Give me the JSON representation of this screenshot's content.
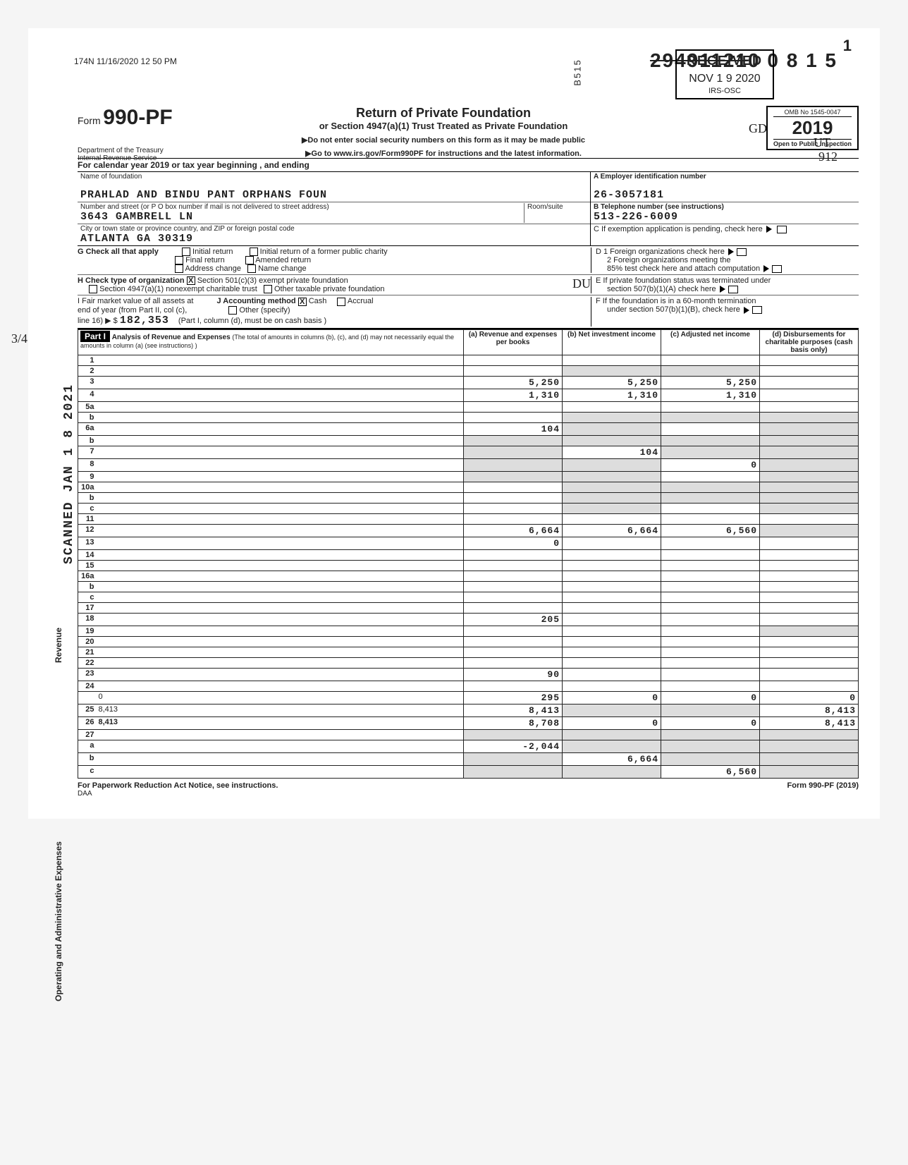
{
  "dln_strike": "29491121",
  "dln_main": "0 0 8 1 5",
  "pagenum": "1",
  "received_label": "RECEIVED",
  "received_date": "NOV 1 9 2020",
  "received_code": "B515",
  "vert_badge": "IRS-OSC",
  "header_timestamp": "174N 11/16/2020 12 50 PM",
  "form": {
    "word": "Form",
    "number": "990-PF"
  },
  "title": "Return of Private Foundation",
  "subtitle": "or Section 4947(a)(1) Trust Treated as Private Foundation",
  "note1": "▶Do not enter social security numbers on this form as it may be made public",
  "note2": "▶Go to  www.irs.gov/Form990PF  for instructions and the latest information.",
  "dept1": "Department of the Treasury",
  "dept2": "Internal Revenue Service",
  "omb": "OMB No 1545-0047",
  "year": "2019",
  "inspection": "Open to Public Inspection",
  "annot": {
    "gd": "GD",
    "ut": "UT",
    "num": "912",
    "du": "DU",
    "frac": "3/4"
  },
  "cal_year": "For calendar year 2019 or tax year beginning                         , and ending",
  "nameA": {
    "lbl": "Name of foundation",
    "val": "PRAHLAD AND BINDU PANT ORPHANS FOUN"
  },
  "eidA": {
    "lbl": "A   Employer identification number",
    "val": "26-3057181"
  },
  "street": {
    "lbl": "Number and street (or P O box number if mail is not delivered to street address)",
    "room_lbl": "Room/suite",
    "val": "3643 GAMBRELL LN"
  },
  "telB": {
    "lbl": "B   Telephone number (see instructions)",
    "val": "513-226-6009"
  },
  "city": {
    "lbl": "City or town state or province country, and ZIP or foreign postal code",
    "val": "ATLANTA                GA 30319"
  },
  "C": "C   If exemption application is pending, check here",
  "G": "G  Check all that apply",
  "G_opts": [
    "Initial return",
    "Final return",
    "Address change",
    "Initial return of a former public charity",
    "Amended return",
    "Name change"
  ],
  "D": "D   1  Foreign organizations check here",
  "D2a": "2  Foreign organizations meeting the",
  "D2b": "85% test check here and attach computation",
  "H": "H  Check type of organization",
  "H1": "Section 501(c)(3) exempt private foundation",
  "H2": "Section 4947(a)(1) nonexempt charitable trust",
  "H3": "Other taxable private foundation",
  "E": "E   If private foundation status was terminated under",
  "E2": "section 507(b)(1)(A) check here",
  "I": "I   Fair market value of all assets at",
  "I2": "end of year (from Part II, col (c),",
  "I3": "line 16) ▶ $",
  "I_val": "182,353",
  "J": "J   Accounting method",
  "J_cash": "Cash",
  "J_accr": "Accrual",
  "J_other": "Other (specify)",
  "J_note": "(Part I, column (d), must be on cash basis )",
  "F": "F   If the foundation is in a 60-month termination",
  "F2": "under section 507(b)(1)(B), check here",
  "part1": "Part I",
  "part1_title": "Analysis of Revenue and Expenses",
  "part1_sub": "(The total of amounts in columns (b), (c), and (d) may not necessarily equal the amounts in column (a) (see instructions) )",
  "col_a": "(a) Revenue and expenses per books",
  "col_b": "(b) Net investment income",
  "col_c": "(c) Adjusted net income",
  "col_d": "(d) Disbursements for charitable purposes (cash basis only)",
  "side_revenue": "Revenue",
  "side_expenses": "Operating and Administrative Expenses",
  "scanned": "SCANNED JAN 1 8 2021",
  "rows": [
    {
      "n": "1",
      "d": "",
      "a": "",
      "b": "",
      "c": ""
    },
    {
      "n": "2",
      "d": "",
      "a": "",
      "b": "",
      "c": "",
      "shade_b": true,
      "shade_c": true
    },
    {
      "n": "3",
      "d": "",
      "a": "5,250",
      "b": "5,250",
      "c": "5,250"
    },
    {
      "n": "4",
      "d": "",
      "a": "1,310",
      "b": "1,310",
      "c": "1,310"
    },
    {
      "n": "5a",
      "d": "",
      "a": "",
      "b": "",
      "c": ""
    },
    {
      "n": "b",
      "d": "",
      "a": "",
      "b": "",
      "c": "",
      "shade_b": true,
      "shade_c": true,
      "shade_d": true
    },
    {
      "n": "6a",
      "d": "",
      "a": "104",
      "b": "",
      "c": "",
      "shade_b": true,
      "shade_d": true
    },
    {
      "n": "b",
      "d": "",
      "a": "",
      "b": "",
      "c": "",
      "shade_a": true,
      "shade_b": true,
      "shade_c": true,
      "shade_d": true
    },
    {
      "n": "7",
      "d": "",
      "a": "",
      "b": "104",
      "c": "",
      "shade_a": true,
      "shade_c": true,
      "shade_d": true
    },
    {
      "n": "8",
      "d": "",
      "a": "",
      "b": "",
      "c": "0",
      "shade_a": true,
      "shade_b": true,
      "shade_d": true
    },
    {
      "n": "9",
      "d": "",
      "a": "",
      "b": "",
      "c": "",
      "shade_a": true,
      "shade_b": true,
      "shade_d": true
    },
    {
      "n": "10a",
      "d": "",
      "a": "",
      "b": "",
      "c": "",
      "shade_b": true,
      "shade_c": true,
      "shade_d": true
    },
    {
      "n": "b",
      "d": "",
      "a": "",
      "b": "",
      "c": "",
      "shade_b": true,
      "shade_c": true,
      "shade_d": true
    },
    {
      "n": "c",
      "d": "",
      "a": "",
      "b": "",
      "c": "",
      "shade_b": true,
      "shade_d": true
    },
    {
      "n": "11",
      "d": "",
      "a": "",
      "b": "",
      "c": ""
    },
    {
      "n": "12",
      "d": "",
      "a": "6,664",
      "b": "6,664",
      "c": "6,560",
      "bold": true,
      "shade_d": true
    },
    {
      "n": "13",
      "d": "",
      "a": "0",
      "b": "",
      "c": ""
    },
    {
      "n": "14",
      "d": "",
      "a": "",
      "b": "",
      "c": ""
    },
    {
      "n": "15",
      "d": "",
      "a": "",
      "b": "",
      "c": ""
    },
    {
      "n": "16a",
      "d": "",
      "a": "",
      "b": "",
      "c": ""
    },
    {
      "n": "b",
      "d": "",
      "a": "",
      "b": "",
      "c": ""
    },
    {
      "n": "c",
      "d": "",
      "a": "",
      "b": "",
      "c": ""
    },
    {
      "n": "17",
      "d": "",
      "a": "",
      "b": "",
      "c": ""
    },
    {
      "n": "18",
      "d": "",
      "a": "205",
      "b": "",
      "c": ""
    },
    {
      "n": "19",
      "d": "",
      "a": "",
      "b": "",
      "c": "",
      "shade_d": true
    },
    {
      "n": "20",
      "d": "",
      "a": "",
      "b": "",
      "c": ""
    },
    {
      "n": "21",
      "d": "",
      "a": "",
      "b": "",
      "c": ""
    },
    {
      "n": "22",
      "d": "",
      "a": "",
      "b": "",
      "c": ""
    },
    {
      "n": "23",
      "d": "",
      "a": "90",
      "b": "",
      "c": ""
    },
    {
      "n": "24",
      "d": "",
      "a": "",
      "b": "",
      "c": "",
      "bold": true,
      "noborder": true
    },
    {
      "n": "",
      "d": "0",
      "a": "295",
      "b": "0",
      "c": "0"
    },
    {
      "n": "25",
      "d": "8,413",
      "a": "8,413",
      "b": "",
      "c": "",
      "shade_b": true,
      "shade_c": true
    },
    {
      "n": "26",
      "d": "8,413",
      "a": "8,708",
      "b": "0",
      "c": "0",
      "bold": true
    },
    {
      "n": "27",
      "d": "",
      "a": "",
      "b": "",
      "c": "",
      "shade_a": true,
      "shade_b": true,
      "shade_c": true,
      "shade_d": true
    },
    {
      "n": "a",
      "d": "",
      "a": "-2,044",
      "b": "",
      "c": "",
      "bold": true,
      "shade_b": true,
      "shade_c": true,
      "shade_d": true
    },
    {
      "n": "b",
      "d": "",
      "a": "",
      "b": "6,664",
      "c": "",
      "bold": true,
      "shade_a": true,
      "shade_c": true,
      "shade_d": true
    },
    {
      "n": "c",
      "d": "",
      "a": "",
      "b": "",
      "c": "6,560",
      "bold": true,
      "shade_a": true,
      "shade_b": true,
      "shade_d": true
    }
  ],
  "footer_left": "For Paperwork Reduction Act Notice, see instructions.",
  "footer_mid": "DAA",
  "footer_right": "Form 990-PF (2019)"
}
